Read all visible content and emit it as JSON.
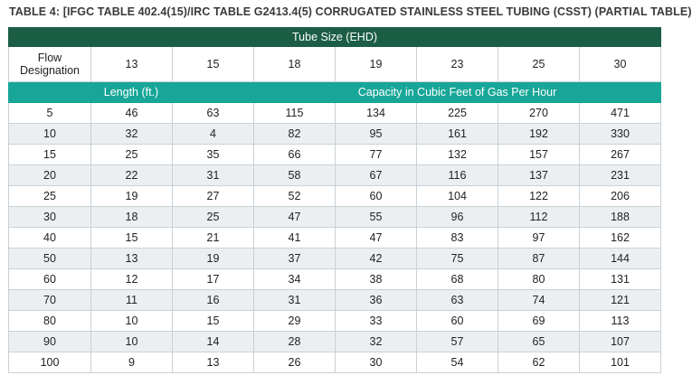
{
  "title": "TABLE 4: [IFGC TABLE 402.4(15)/IRC TABLE G2413.4(5) CORRUGATED STAINLESS STEEL TUBING (CSST) (PARTIAL TABLE)",
  "header": {
    "tube_size": "Tube Size (EHD)",
    "flow_designation": "Flow Designation",
    "flow_values": [
      "13",
      "15",
      "18",
      "19",
      "23",
      "25",
      "30"
    ],
    "length_label": "Length (ft.)",
    "capacity_label": "Capacity in Cubic Feet of Gas Per Hour"
  },
  "rows": [
    [
      "5",
      "46",
      "63",
      "115",
      "134",
      "225",
      "270",
      "471"
    ],
    [
      "10",
      "32",
      "4",
      "82",
      "95",
      "161",
      "192",
      "330"
    ],
    [
      "15",
      "25",
      "35",
      "66",
      "77",
      "132",
      "157",
      "267"
    ],
    [
      "20",
      "22",
      "31",
      "58",
      "67",
      "116",
      "137",
      "231"
    ],
    [
      "25",
      "19",
      "27",
      "52",
      "60",
      "104",
      "122",
      "206"
    ],
    [
      "30",
      "18",
      "25",
      "47",
      "55",
      "96",
      "112",
      "188"
    ],
    [
      "40",
      "15",
      "21",
      "41",
      "47",
      "83",
      "97",
      "162"
    ],
    [
      "50",
      "13",
      "19",
      "37",
      "42",
      "75",
      "87",
      "144"
    ],
    [
      "60",
      "12",
      "17",
      "34",
      "38",
      "68",
      "80",
      "131"
    ],
    [
      "70",
      "11",
      "16",
      "31",
      "36",
      "63",
      "74",
      "121"
    ],
    [
      "80",
      "10",
      "15",
      "29",
      "33",
      "60",
      "69",
      "113"
    ],
    [
      "90",
      "10",
      "14",
      "28",
      "32",
      "57",
      "65",
      "107"
    ],
    [
      "100",
      "9",
      "13",
      "26",
      "30",
      "54",
      "62",
      "101"
    ]
  ],
  "colors": {
    "header_green": "#1b5e45",
    "header_teal": "#17a697",
    "stripe": "#eceff1"
  }
}
